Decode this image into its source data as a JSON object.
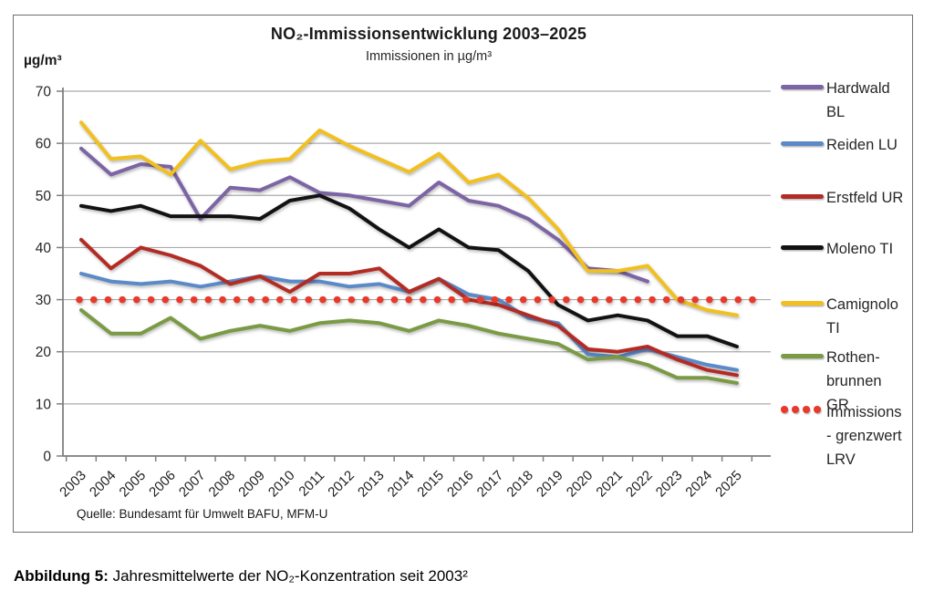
{
  "chart_data": {
    "type": "line",
    "title": "NO₂-Immissionsentwicklung 2003–2025",
    "subtitle": "Immissionen in µg/m³",
    "y_axis_unit": "µg/m³",
    "source": "Quelle:  Bundesamt für Umwelt BAFU,  MFM-U",
    "caption_bold": "Abbildung 5:",
    "caption_rest": " Jahresmittelwerte der NO₂-Konzentration seit 2003²",
    "ylim": [
      0,
      70
    ],
    "ytick_step": 10,
    "grid": true,
    "legend_position": "right",
    "x": [
      2003,
      2004,
      2005,
      2006,
      2007,
      2008,
      2009,
      2010,
      2011,
      2012,
      2013,
      2014,
      2015,
      2016,
      2017,
      2018,
      2019,
      2020,
      2021,
      2022,
      2023,
      2024,
      2025
    ],
    "series": [
      {
        "name": "Hardwald BL",
        "legend_lines": [
          "Hardwald",
          "BL"
        ],
        "color": "#7C64A5",
        "style": "line",
        "values": [
          59,
          54,
          56,
          55.5,
          45.5,
          51.5,
          51,
          53.5,
          50.5,
          50,
          49,
          48,
          52.5,
          49,
          48,
          45.5,
          41.5,
          36,
          35.5,
          33.5,
          null,
          null,
          null
        ]
      },
      {
        "name": "Reiden LU",
        "legend_lines": [
          "Reiden LU"
        ],
        "color": "#5B8AC9",
        "style": "line",
        "values": [
          35,
          33.5,
          33,
          33.5,
          32.5,
          33.5,
          34.5,
          33.5,
          33.5,
          32.5,
          33,
          31.5,
          34,
          31,
          30,
          26.5,
          25.5,
          19.5,
          19,
          20.5,
          19,
          17.5,
          16.5
        ]
      },
      {
        "name": "Erstfeld UR",
        "legend_lines": [
          "Erstfeld UR"
        ],
        "color": "#B42B24",
        "style": "line",
        "values": [
          41.5,
          36,
          40,
          38.5,
          36.5,
          33,
          34.5,
          31.5,
          35,
          35,
          36,
          31.5,
          34,
          30,
          29,
          27,
          25,
          20.5,
          20,
          21,
          18.5,
          16.5,
          15.5
        ]
      },
      {
        "name": "Moleno TI",
        "legend_lines": [
          "Moleno TI"
        ],
        "color": "#121212",
        "style": "line",
        "values": [
          48,
          47,
          48,
          46,
          46,
          46,
          45.5,
          49,
          50,
          47.5,
          43.5,
          40,
          43.5,
          40,
          39.5,
          35.5,
          29,
          26,
          27,
          26,
          23,
          23,
          21
        ]
      },
      {
        "name": "Camignolo TI",
        "legend_lines": [
          "Camignolo",
          "TI"
        ],
        "color": "#F2C01E",
        "style": "line",
        "values": [
          64,
          57,
          57.5,
          54,
          60.5,
          55,
          56.5,
          57,
          62.5,
          59.5,
          57,
          54.5,
          58,
          52.5,
          54,
          49.5,
          43.5,
          35.5,
          35.5,
          36.5,
          30,
          28,
          27
        ]
      },
      {
        "name": "Rothenbrunnen GR",
        "legend_lines": [
          "Rothen-",
          "brunnen",
          "GR"
        ],
        "color": "#7A9A44",
        "style": "line",
        "values": [
          28,
          23.5,
          23.5,
          26.5,
          22.5,
          24,
          25,
          24,
          25.5,
          26,
          25.5,
          24,
          26,
          25,
          23.5,
          22.5,
          21.5,
          18.5,
          19,
          17.5,
          15,
          15,
          14
        ]
      },
      {
        "name": "Immissionsgrenzwert LRV",
        "legend_lines": [
          "Immissions",
          "- grenzwert",
          "LRV"
        ],
        "color": "#E8392B",
        "style": "dots",
        "values": [
          30,
          30,
          30,
          30,
          30,
          30,
          30,
          30,
          30,
          30,
          30,
          30,
          30,
          30,
          30,
          30,
          30,
          30,
          30,
          30,
          30,
          30,
          30
        ]
      }
    ]
  }
}
